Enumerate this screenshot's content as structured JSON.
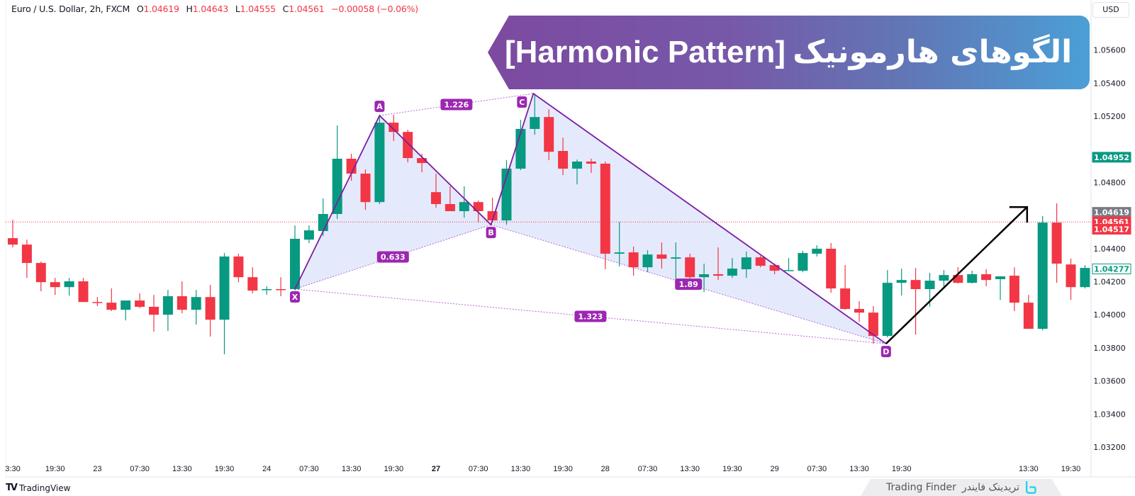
{
  "header": {
    "symbol": "Euro / U.S. Dollar, 2h, FXCM",
    "ohlc": [
      {
        "key": "O",
        "value": "1.04619"
      },
      {
        "key": "H",
        "value": "1.04643"
      },
      {
        "key": "L",
        "value": "1.04555"
      },
      {
        "key": "C",
        "value": "1.04561"
      }
    ],
    "change": "−0.00058 (−0.06%)"
  },
  "currency_button": "USD",
  "banner": {
    "title_en": "[Harmonic Pattern]",
    "title_fa": "الگوهای هارمونیک"
  },
  "watermark": {
    "name_fa": "تریدینک فایندر",
    "name_en": "Trading Finder",
    "logo_color": "#22d3ee"
  },
  "footer": {
    "brand_logo": "TV",
    "brand": "TradingView"
  },
  "colors": {
    "up": "#089981",
    "down": "#f23645",
    "pattern_line": "#7b1fa2",
    "pattern_label": "#9c27b0",
    "pattern_fill": "#dfe6fb"
  },
  "chart_data": {
    "type": "candlestick",
    "interval": "2h",
    "ylim": [
      1.031,
      1.0573
    ],
    "grid": false,
    "y_ticks": [
      "1.05600",
      "1.05400",
      "1.05200",
      "1.05000",
      "1.04800",
      "1.04600",
      "1.04400",
      "1.04200",
      "1.04000",
      "1.03800",
      "1.03600",
      "1.03400",
      "1.03200"
    ],
    "x_ticks": [
      {
        "label": "3:30",
        "index": 0
      },
      {
        "label": "19:30",
        "index": 3
      },
      {
        "label": "23",
        "index": 6
      },
      {
        "label": "07:30",
        "index": 9
      },
      {
        "label": "13:30",
        "index": 12
      },
      {
        "label": "19:30",
        "index": 15
      },
      {
        "label": "24",
        "index": 18
      },
      {
        "label": "07:30",
        "index": 21
      },
      {
        "label": "13:30",
        "index": 24
      },
      {
        "label": "19:30",
        "index": 27
      },
      {
        "label": "27",
        "index": 30
      },
      {
        "label": "07:30",
        "index": 33
      },
      {
        "label": "13:30",
        "index": 36
      },
      {
        "label": "19:30",
        "index": 39
      },
      {
        "label": "28",
        "index": 42
      },
      {
        "label": "07:30",
        "index": 45
      },
      {
        "label": "13:30",
        "index": 48
      },
      {
        "label": "19:30",
        "index": 51
      },
      {
        "label": "29",
        "index": 54
      },
      {
        "label": "07:30",
        "index": 57
      },
      {
        "label": "13:30",
        "index": 60
      },
      {
        "label": "19:30",
        "index": 63
      },
      {
        "label": "13:30",
        "index": 72
      },
      {
        "label": "19:30",
        "index": 75
      }
    ],
    "candles_ohlc": [
      [
        1.04463,
        1.04574,
        1.04407,
        1.04424
      ],
      [
        1.04424,
        1.04454,
        1.04223,
        1.04313
      ],
      [
        1.04313,
        1.04322,
        1.04142,
        1.04197
      ],
      [
        1.04197,
        1.04223,
        1.0412,
        1.04167
      ],
      [
        1.04167,
        1.04223,
        1.04116,
        1.04202
      ],
      [
        1.04202,
        1.04223,
        1.04077,
        1.04077
      ],
      [
        1.04077,
        1.04107,
        1.04052,
        1.04073
      ],
      [
        1.04073,
        1.04159,
        1.04022,
        1.0403
      ],
      [
        1.0403,
        1.04086,
        1.03966,
        1.04086
      ],
      [
        1.04086,
        1.04129,
        1.04039,
        1.04048
      ],
      [
        1.04048,
        1.0412,
        1.03898,
        1.04
      ],
      [
        1.04,
        1.0415,
        1.03902,
        1.04112
      ],
      [
        1.04112,
        1.04202,
        1.04009,
        1.0403
      ],
      [
        1.0403,
        1.0415,
        1.0394,
        1.04107
      ],
      [
        1.04107,
        1.0418,
        1.03868,
        1.0397
      ],
      [
        1.0397,
        1.04373,
        1.03761,
        1.04352
      ],
      [
        1.04352,
        1.04369,
        1.04197,
        1.04227
      ],
      [
        1.04227,
        1.04287,
        1.04129,
        1.04146
      ],
      [
        1.0415,
        1.04172,
        1.0412,
        1.04155
      ],
      [
        1.04155,
        1.04227,
        1.04112,
        1.0415
      ],
      [
        1.04155,
        1.0454,
        1.04146,
        1.04459
      ],
      [
        1.04454,
        1.0454,
        1.04433,
        1.0451
      ],
      [
        1.04506,
        1.04703,
        1.04476,
        1.04609
      ],
      [
        1.04609,
        1.05144,
        1.04579,
        1.04943
      ],
      [
        1.04943,
        1.04973,
        1.0481,
        1.04853
      ],
      [
        1.04853,
        1.04878,
        1.04634,
        1.04681
      ],
      [
        1.04681,
        1.05204,
        1.04669,
        1.05161
      ],
      [
        1.05161,
        1.05208,
        1.0505,
        1.05105
      ],
      [
        1.05105,
        1.05118,
        1.04921,
        1.04947
      ],
      [
        1.04947,
        1.04973,
        1.04861,
        1.04917
      ],
      [
        1.04741,
        1.04853,
        1.04647,
        1.04669
      ],
      [
        1.04669,
        1.04776,
        1.04626,
        1.04626
      ],
      [
        1.04626,
        1.04776,
        1.04587,
        1.04681
      ],
      [
        1.04681,
        1.0469,
        1.04557,
        1.04626
      ],
      [
        1.04626,
        1.04707,
        1.04561,
        1.0457
      ],
      [
        1.0457,
        1.04934,
        1.04544,
        1.04883
      ],
      [
        1.04883,
        1.05178,
        1.04874,
        1.05123
      ],
      [
        1.05123,
        1.05337,
        1.05088,
        1.05195
      ],
      [
        1.05195,
        1.05242,
        1.04934,
        1.04985
      ],
      [
        1.0499,
        1.05071,
        1.04844,
        1.04883
      ],
      [
        1.04883,
        1.04938,
        1.04788,
        1.04926
      ],
      [
        1.04926,
        1.04943,
        1.04857,
        1.04913
      ],
      [
        1.04913,
        1.04926,
        1.04275,
        1.04369
      ],
      [
        1.04369,
        1.04561,
        1.04292,
        1.04377
      ],
      [
        1.04377,
        1.04412,
        1.04236,
        1.04287
      ],
      [
        1.04287,
        1.0439,
        1.04257,
        1.04364
      ],
      [
        1.04364,
        1.04437,
        1.04279,
        1.04339
      ],
      [
        1.04339,
        1.04437,
        1.04193,
        1.04347
      ],
      [
        1.04347,
        1.04369,
        1.04219,
        1.04227
      ],
      [
        1.04227,
        1.04309,
        1.04137,
        1.04245
      ],
      [
        1.04245,
        1.04407,
        1.0421,
        1.04236
      ],
      [
        1.04236,
        1.04343,
        1.04223,
        1.04279
      ],
      [
        1.04275,
        1.04382,
        1.04223,
        1.04347
      ],
      [
        1.04347,
        1.04356,
        1.04287,
        1.04296
      ],
      [
        1.043,
        1.04309,
        1.04245,
        1.04266
      ],
      [
        1.04266,
        1.04343,
        1.04266,
        1.0427
      ],
      [
        1.04266,
        1.04386,
        1.04257,
        1.04373
      ],
      [
        1.04369,
        1.0442,
        1.04352,
        1.04399
      ],
      [
        1.04399,
        1.04433,
        1.04133,
        1.04159
      ],
      [
        1.04159,
        1.043,
        1.0403,
        1.04035
      ],
      [
        1.04035,
        1.04082,
        1.03958,
        1.04013
      ],
      [
        1.04013,
        1.04052,
        1.03825,
        1.03872
      ],
      [
        1.03872,
        1.0427,
        1.03863,
        1.04193
      ],
      [
        1.04193,
        1.04279,
        1.04116,
        1.0421
      ],
      [
        1.0421,
        1.04283,
        1.0388,
        1.04155
      ],
      [
        1.04155,
        1.04253,
        1.04048,
        1.04206
      ],
      [
        1.04206,
        1.0427,
        1.04172,
        1.0424
      ],
      [
        1.0424,
        1.04287,
        1.04189,
        1.04193
      ],
      [
        1.04193,
        1.04266,
        1.04189,
        1.04245
      ],
      [
        1.04245,
        1.04275,
        1.04172,
        1.0421
      ],
      [
        1.04215,
        1.04232,
        1.0409,
        1.04232
      ],
      [
        1.04236,
        1.04287,
        1.04022,
        1.04073
      ],
      [
        1.04073,
        1.0412,
        1.03915,
        1.03915
      ],
      [
        1.03915,
        1.04596,
        1.03906,
        1.04557
      ],
      [
        1.04557,
        1.04673,
        1.04193,
        1.04309
      ],
      [
        1.04304,
        1.04339,
        1.0409,
        1.04167
      ],
      [
        1.04167,
        1.043,
        1.04159,
        1.04283
      ]
    ],
    "current_price_line": 1.04561,
    "price_labels": [
      {
        "value": "1.04952",
        "price": 1.04952,
        "style": "filled-green"
      },
      {
        "value": "1.04619",
        "price": 1.04619,
        "style": "filled-gray"
      },
      {
        "value": "1.04561",
        "price": 1.04561,
        "style": "filled-red"
      },
      {
        "value": "1.04517",
        "price": 1.04517,
        "style": "filled-red"
      },
      {
        "value": "1.04277",
        "price": 1.04277,
        "style": "outline-green"
      }
    ],
    "harmonic_pattern": {
      "points": [
        {
          "label": "X",
          "index": 20,
          "price": 1.04155
        },
        {
          "label": "A",
          "index": 26,
          "price": 1.05204
        },
        {
          "label": "B",
          "index": 33.9,
          "price": 1.04544
        },
        {
          "label": "C",
          "index": 36.9,
          "price": 1.05337
        },
        {
          "label": "D",
          "index": 61.9,
          "price": 1.03825
        }
      ],
      "ratios": [
        {
          "label": "1.226",
          "from": "A",
          "to": "C"
        },
        {
          "label": "0.633",
          "from": "X",
          "to": "B"
        },
        {
          "label": "1.89",
          "from": "B",
          "to": "D"
        },
        {
          "label": "1.323",
          "from": "X",
          "to": "D"
        }
      ]
    },
    "projection_arrow": {
      "from": {
        "index": 61.9,
        "price": 1.03825
      },
      "to": {
        "index": 71.9,
        "price": 1.04651
      }
    }
  }
}
